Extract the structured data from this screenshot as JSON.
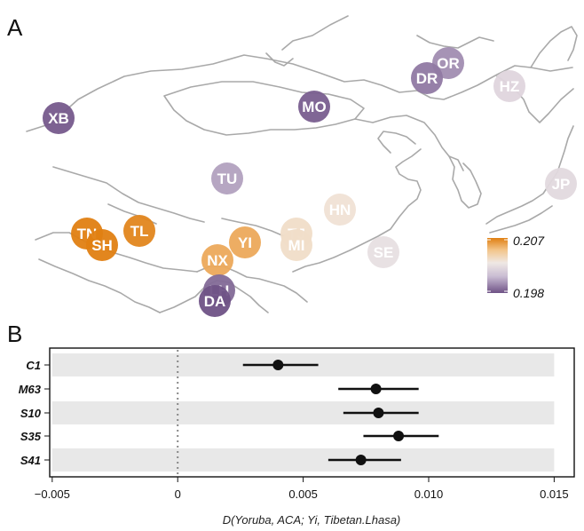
{
  "panels": {
    "a": "A",
    "b": "B"
  },
  "chart_data": [
    {
      "type": "map",
      "panel": "A",
      "populations": [
        {
          "label": "XB",
          "value": 0.1982
        },
        {
          "label": "MO",
          "value": 0.1983
        },
        {
          "label": "OR",
          "value": 0.1995
        },
        {
          "label": "DR",
          "value": 0.199
        },
        {
          "label": "HZ",
          "value": 0.202
        },
        {
          "label": "TU",
          "value": 0.2
        },
        {
          "label": "JP",
          "value": 0.2022
        },
        {
          "label": "HN",
          "value": 0.2033
        },
        {
          "label": "TJ",
          "value": 0.2036
        },
        {
          "label": "MI",
          "value": 0.2036
        },
        {
          "label": "SE",
          "value": 0.2025
        },
        {
          "label": "TN",
          "value": 0.207
        },
        {
          "label": "SH",
          "value": 0.207
        },
        {
          "label": "TL",
          "value": 0.2068
        },
        {
          "label": "YI",
          "value": 0.2058
        },
        {
          "label": "NX",
          "value": 0.2058
        },
        {
          "label": "LH",
          "value": 0.1986
        },
        {
          "label": "DA",
          "value": 0.198
        }
      ],
      "legend": {
        "max_label": "0.207",
        "min_label": "0.198",
        "min": 0.198,
        "max": 0.207,
        "colors": [
          "#6f5286",
          "#c9bcd3",
          "#efe8e4",
          "#f3c58a",
          "#e07f12"
        ]
      }
    },
    {
      "type": "scatter",
      "panel": "B",
      "xlabel": "D(Yoruba, ACA; Yi, Tibetan.Lhasa)",
      "ylabel": "",
      "xlim": [
        -0.0051,
        0.0158
      ],
      "xticks": [
        {
          "value": -0.005,
          "label": "−0.005"
        },
        {
          "value": 0,
          "label": "0"
        },
        {
          "value": 0.005,
          "label": "0.005"
        },
        {
          "value": 0.01,
          "label": "0.010"
        },
        {
          "value": 0.015,
          "label": "0.015"
        }
      ],
      "reference_line": 0,
      "rows": [
        {
          "label": "C1",
          "estimate": 0.004,
          "lower": 0.0026,
          "upper": 0.0056
        },
        {
          "label": "M63",
          "estimate": 0.0079,
          "lower": 0.0064,
          "upper": 0.0096
        },
        {
          "label": "S10",
          "estimate": 0.008,
          "lower": 0.0066,
          "upper": 0.0096
        },
        {
          "label": "S35",
          "estimate": 0.0088,
          "lower": 0.0074,
          "upper": 0.0104
        },
        {
          "label": "S41",
          "estimate": 0.0073,
          "lower": 0.006,
          "upper": 0.0089
        }
      ]
    }
  ]
}
